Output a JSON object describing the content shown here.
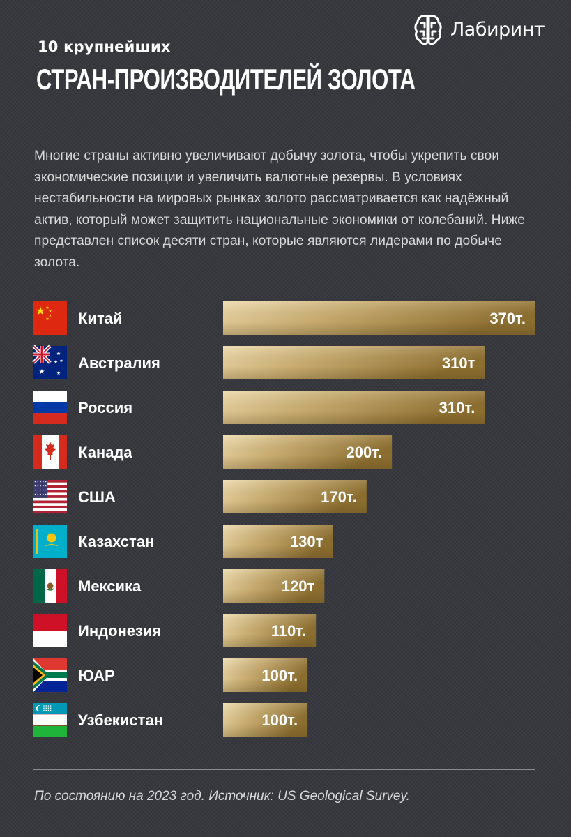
{
  "header": {
    "subtitle": "10 крупнейших",
    "title": "СТРАН-ПРОИЗВОДИТЕЛЕЙ ЗОЛОТА",
    "logo_text": "Лабиринт"
  },
  "intro": "Многие страны активно увеличивают добычу золота, чтобы укрепить свои экономические позиции и увеличить валютные резервы. В условиях нестабильности на мировых рынках золото рассматривается как надёжный актив, который может защитить национальные экономики от колебаний. Ниже представлен список десяти стран, которые являются лидерами по добыче золота.",
  "footer": "По состоянию на 2023 год. Источник: US Geological Survey.",
  "colors": {
    "background": "#34363c",
    "gold_light": "#efdcae",
    "gold_dark": "#8c6e2f"
  },
  "chart_data": {
    "type": "bar",
    "orientation": "horizontal",
    "title": "",
    "xlabel": "",
    "ylabel": "",
    "xlim": [
      0,
      370
    ],
    "grid": false,
    "legend": "none",
    "categories": [
      "Китай",
      "Австралия",
      "Россия",
      "Канада",
      "США",
      "Казахстан",
      "Мексика",
      "Индонезия",
      "ЮАР",
      "Узбекистан"
    ],
    "flags": [
      "china-flag-icon",
      "australia-flag-icon",
      "russia-flag-icon",
      "canada-flag-icon",
      "usa-flag-icon",
      "kazakhstan-flag-icon",
      "mexico-flag-icon",
      "indonesia-flag-icon",
      "south-africa-flag-icon",
      "uzbekistan-flag-icon"
    ],
    "values": [
      370,
      310,
      310,
      200,
      170,
      130,
      120,
      110,
      100,
      100
    ],
    "value_labels": [
      "370т.",
      "310т",
      "310т.",
      "200т.",
      "170т.",
      "130т",
      "120т",
      "110т.",
      "100т.",
      "100т."
    ]
  }
}
